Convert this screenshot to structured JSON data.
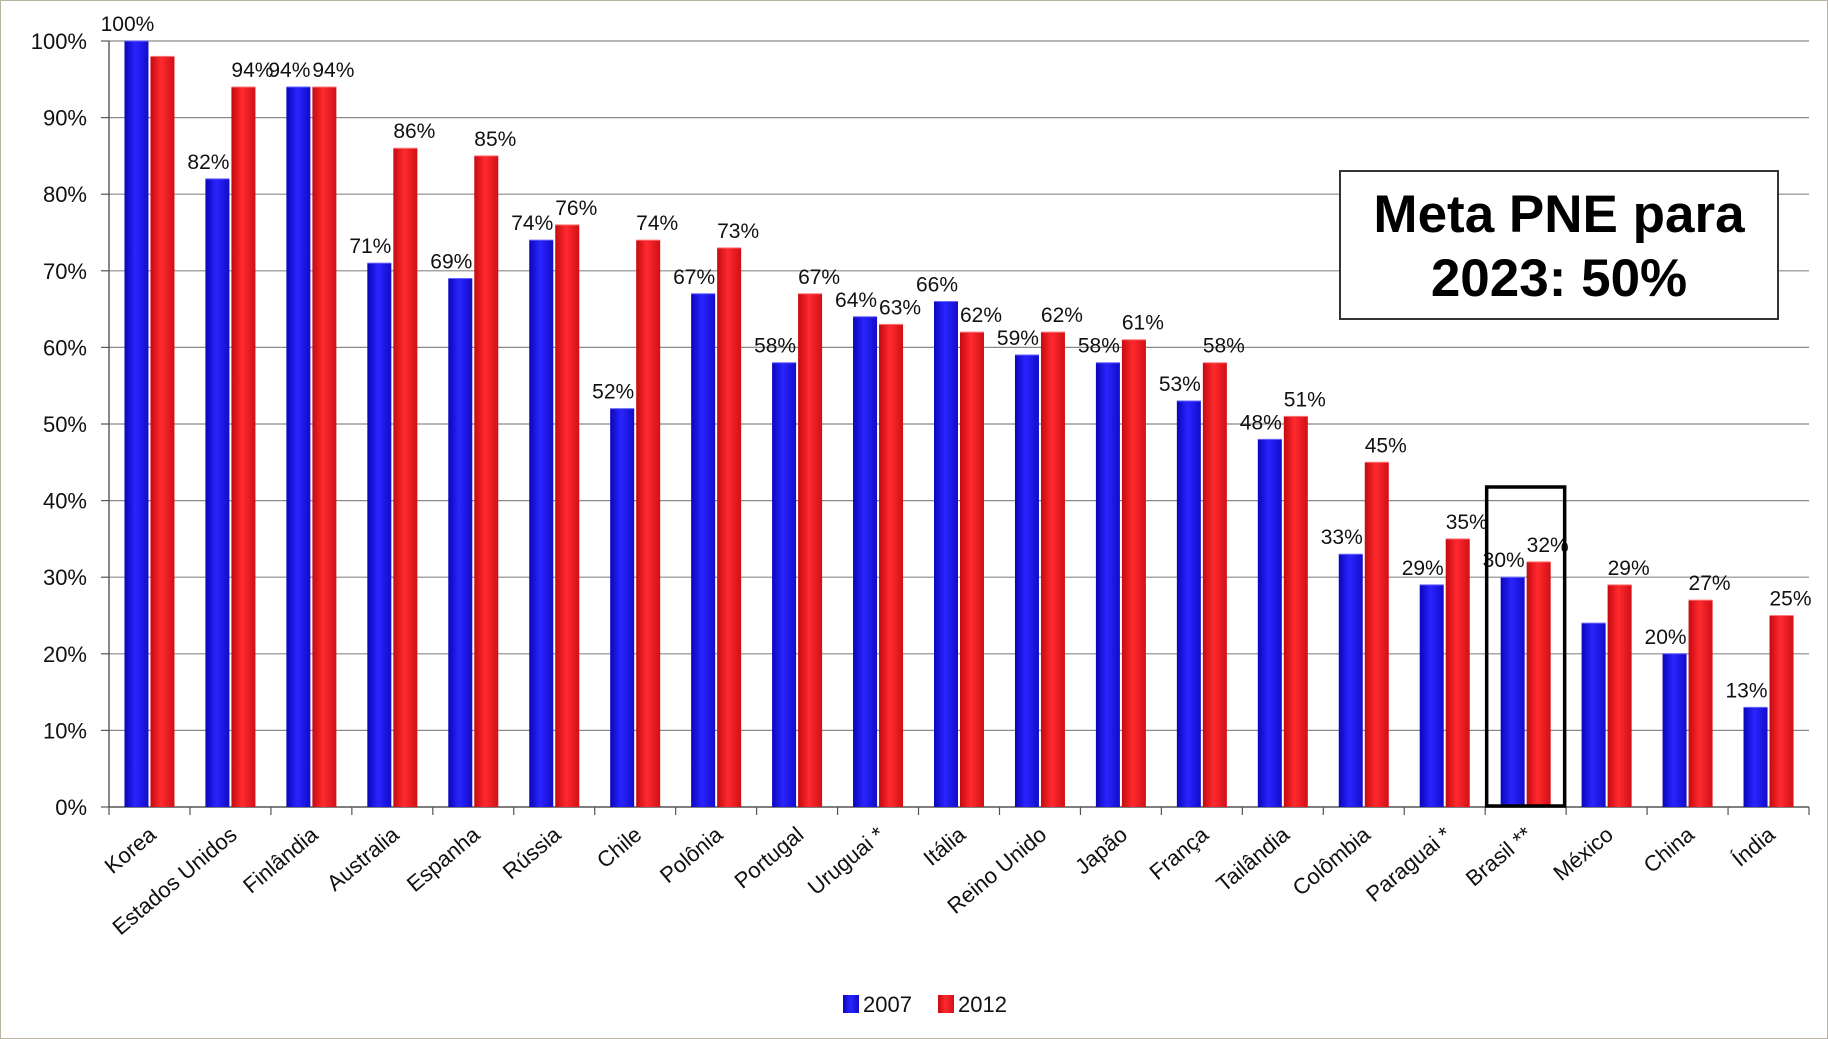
{
  "chart_data": {
    "type": "bar",
    "categories": [
      "Korea",
      "Estados Unidos",
      "Finlândia",
      "Australia",
      "Espanha",
      "Rússia",
      "Chile",
      "Polônia",
      "Portugal",
      "Uruguai *",
      "Itália",
      "Reino Unido",
      "Japão",
      "França",
      "Tailândia",
      "Colômbia",
      "Paraguai *",
      "Brasil **",
      "México",
      "China",
      "Índia"
    ],
    "series": [
      {
        "name": "2007",
        "color": "#1a14e6",
        "values": [
          100,
          82,
          94,
          71,
          69,
          74,
          52,
          67,
          58,
          64,
          66,
          59,
          58,
          53,
          48,
          33,
          29,
          30,
          24,
          20,
          13
        ],
        "labels": [
          "100%",
          "82%",
          "94%",
          "71%",
          "69%",
          "74%",
          "52%",
          "67%",
          "58%",
          "64%",
          "66%",
          "59%",
          "58%",
          "53%",
          "48%",
          "33%",
          "29%",
          "30%",
          "",
          "20%",
          "13%"
        ]
      },
      {
        "name": "2012",
        "color": "#e6141a",
        "values": [
          98,
          94,
          94,
          86,
          85,
          76,
          74,
          73,
          67,
          63,
          62,
          62,
          61,
          58,
          51,
          45,
          35,
          32,
          29,
          27,
          25
        ],
        "labels": [
          "",
          "94%",
          "94%",
          "86%",
          "85%",
          "76%",
          "74%",
          "73%",
          "67%",
          "63%",
          "62%",
          "62%",
          "61%",
          "58%",
          "51%",
          "45%",
          "35%",
          "32%",
          "29%",
          "27%",
          "25%"
        ]
      }
    ],
    "yticks": [
      "0%",
      "10%",
      "20%",
      "30%",
      "40%",
      "50%",
      "60%",
      "70%",
      "80%",
      "90%",
      "100%"
    ],
    "ylim": [
      0,
      100
    ],
    "grid": true,
    "legend": "bottom-center",
    "highlight_category": "Brasil **",
    "annotation": {
      "line1": "Meta PNE para",
      "line2": "2023: 50%"
    }
  }
}
